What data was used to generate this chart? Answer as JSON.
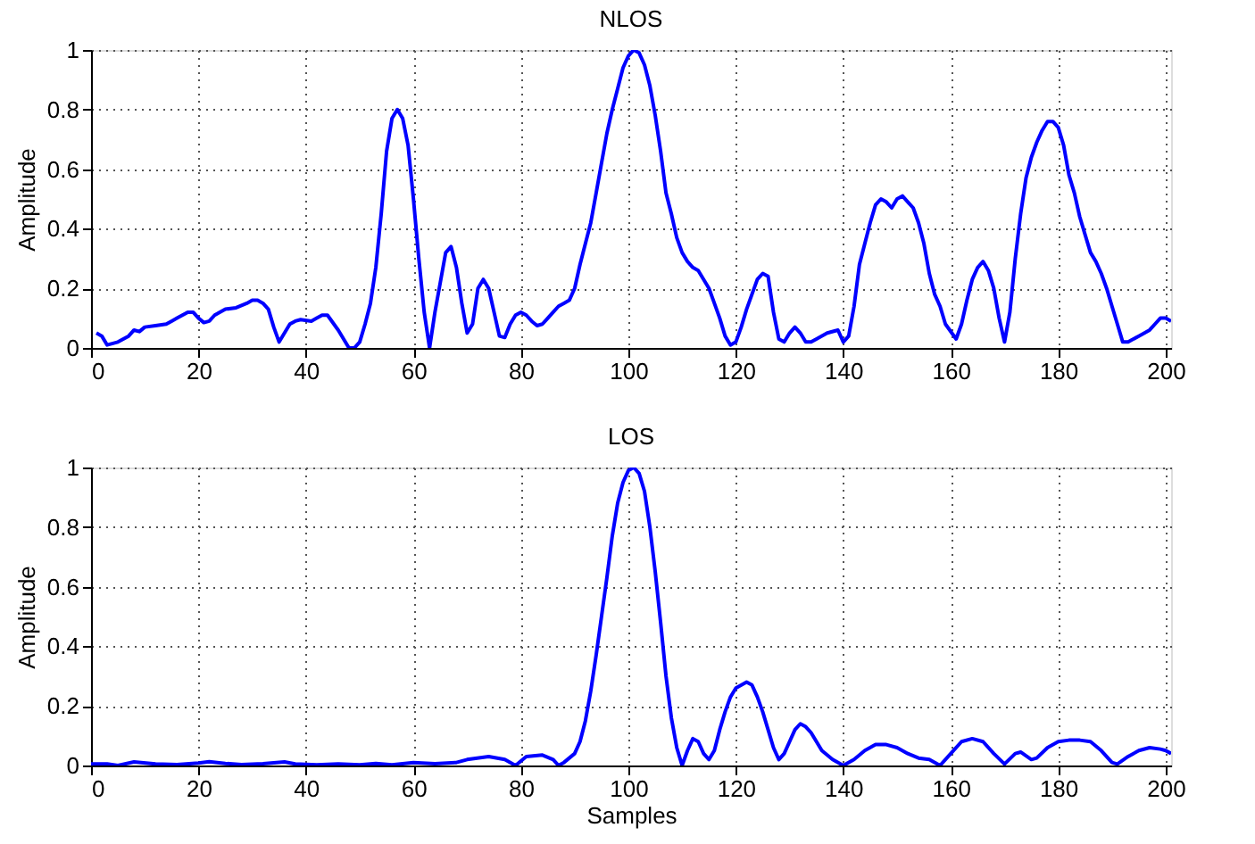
{
  "chart_data": [
    {
      "type": "line",
      "title": "NLOS",
      "ylabel": "Amplitude",
      "xlim": [
        0,
        201
      ],
      "ylim": [
        0,
        1
      ],
      "xticks": [
        0,
        20,
        40,
        60,
        80,
        100,
        120,
        140,
        160,
        180,
        200
      ],
      "yticks": [
        0,
        0.2,
        0.4,
        0.6,
        0.8,
        1
      ],
      "grid": true,
      "line_style": "solid",
      "marker": "none",
      "series": [
        {
          "color": "#0000ff",
          "x": [
            1,
            2,
            3,
            5,
            7,
            8,
            9,
            10,
            12,
            14,
            15,
            16,
            17,
            18,
            19,
            20,
            21,
            22,
            23,
            25,
            27,
            29,
            30,
            31,
            32,
            33,
            34,
            35,
            36,
            37,
            38,
            39,
            41,
            42,
            43,
            44,
            46,
            47,
            48,
            49,
            50,
            51,
            52,
            53,
            54,
            55,
            56,
            57,
            58,
            59,
            60,
            61,
            62,
            63,
            64,
            65,
            66,
            67,
            68,
            69,
            70,
            71,
            72,
            73,
            74,
            75,
            76,
            77,
            78,
            79,
            80,
            81,
            82,
            83,
            84,
            85,
            86,
            87,
            88,
            89,
            90,
            91,
            92,
            93,
            94,
            95,
            96,
            97,
            98,
            99,
            100,
            101,
            102,
            103,
            104,
            105,
            106,
            107,
            108,
            109,
            110,
            111,
            112,
            113,
            114,
            115,
            116,
            117,
            118,
            119,
            120,
            121,
            122,
            123,
            124,
            125,
            126,
            127,
            128,
            129,
            130,
            131,
            132,
            133,
            134,
            135,
            137,
            139,
            140,
            141,
            142,
            143,
            144,
            145,
            146,
            147,
            148,
            149,
            150,
            151,
            152,
            153,
            154,
            155,
            156,
            157,
            158,
            159,
            161,
            162,
            163,
            164,
            165,
            166,
            167,
            168,
            169,
            170,
            171,
            172,
            173,
            174,
            175,
            176,
            177,
            178,
            179,
            180,
            181,
            182,
            183,
            184,
            185,
            186,
            187,
            188,
            189,
            190,
            191,
            192,
            193,
            195,
            197,
            198,
            199,
            200,
            201
          ],
          "values": [
            0.05,
            0.04,
            0.01,
            0.02,
            0.04,
            0.06,
            0.055,
            0.07,
            0.075,
            0.08,
            0.09,
            0.1,
            0.11,
            0.12,
            0.12,
            0.1,
            0.085,
            0.09,
            0.11,
            0.13,
            0.135,
            0.15,
            0.16,
            0.16,
            0.15,
            0.13,
            0.07,
            0.02,
            0.05,
            0.08,
            0.09,
            0.095,
            0.09,
            0.1,
            0.11,
            0.11,
            0.06,
            0.03,
            0.0,
            0.0,
            0.02,
            0.08,
            0.15,
            0.27,
            0.45,
            0.66,
            0.77,
            0.8,
            0.77,
            0.68,
            0.5,
            0.3,
            0.12,
            0.0,
            0.12,
            0.22,
            0.32,
            0.34,
            0.27,
            0.15,
            0.05,
            0.08,
            0.2,
            0.23,
            0.2,
            0.12,
            0.04,
            0.035,
            0.08,
            0.11,
            0.12,
            0.11,
            0.09,
            0.075,
            0.08,
            0.1,
            0.12,
            0.14,
            0.15,
            0.16,
            0.2,
            0.28,
            0.35,
            0.42,
            0.52,
            0.62,
            0.72,
            0.8,
            0.87,
            0.94,
            0.98,
            1.0,
            0.99,
            0.95,
            0.88,
            0.78,
            0.66,
            0.52,
            0.45,
            0.37,
            0.32,
            0.29,
            0.27,
            0.26,
            0.23,
            0.2,
            0.15,
            0.1,
            0.04,
            0.01,
            0.02,
            0.07,
            0.13,
            0.18,
            0.23,
            0.25,
            0.24,
            0.12,
            0.03,
            0.02,
            0.05,
            0.07,
            0.05,
            0.02,
            0.02,
            0.03,
            0.05,
            0.06,
            0.02,
            0.04,
            0.14,
            0.28,
            0.35,
            0.42,
            0.48,
            0.5,
            0.49,
            0.47,
            0.5,
            0.51,
            0.49,
            0.47,
            0.42,
            0.35,
            0.25,
            0.18,
            0.14,
            0.08,
            0.03,
            0.08,
            0.16,
            0.23,
            0.27,
            0.29,
            0.26,
            0.2,
            0.1,
            0.02,
            0.12,
            0.3,
            0.45,
            0.57,
            0.64,
            0.69,
            0.73,
            0.76,
            0.76,
            0.74,
            0.68,
            0.58,
            0.52,
            0.44,
            0.38,
            0.32,
            0.29,
            0.25,
            0.2,
            0.14,
            0.08,
            0.02,
            0.02,
            0.04,
            0.06,
            0.08,
            0.1,
            0.1,
            0.09
          ]
        }
      ]
    },
    {
      "type": "line",
      "title": "LOS",
      "xlabel": "Samples",
      "ylabel": "Amplitude",
      "xlim": [
        0,
        201
      ],
      "ylim": [
        0,
        1
      ],
      "xticks": [
        0,
        20,
        40,
        60,
        80,
        100,
        120,
        140,
        160,
        180,
        200
      ],
      "yticks": [
        0,
        0.2,
        0.4,
        0.6,
        0.8,
        1
      ],
      "grid": true,
      "line_style": "solid",
      "marker": "none",
      "series": [
        {
          "color": "#0000ff",
          "x": [
            0,
            3,
            5,
            8,
            12,
            16,
            20,
            22,
            25,
            28,
            32,
            36,
            38,
            42,
            46,
            50,
            53,
            56,
            60,
            64,
            68,
            70,
            74,
            77,
            79,
            81,
            84,
            86,
            87,
            88,
            90,
            91,
            92,
            93,
            94,
            95,
            96,
            97,
            98,
            99,
            100,
            101,
            102,
            103,
            104,
            105,
            106,
            107,
            108,
            109,
            110,
            111,
            112,
            113,
            114,
            115,
            116,
            117,
            118,
            119,
            120,
            122,
            123,
            124,
            125,
            126,
            127,
            128,
            129,
            130,
            131,
            132,
            133,
            134,
            135,
            136,
            138,
            140,
            142,
            144,
            146,
            148,
            150,
            152,
            154,
            156,
            158,
            160,
            162,
            164,
            166,
            168,
            170,
            172,
            173,
            175,
            176,
            178,
            180,
            182,
            184,
            186,
            188,
            190,
            191,
            193,
            195,
            197,
            199,
            200,
            201
          ],
          "values": [
            0.005,
            0.005,
            0.0,
            0.012,
            0.005,
            0.003,
            0.008,
            0.013,
            0.007,
            0.003,
            0.006,
            0.012,
            0.005,
            0.002,
            0.005,
            0.002,
            0.007,
            0.002,
            0.01,
            0.006,
            0.01,
            0.02,
            0.03,
            0.02,
            0.0,
            0.03,
            0.035,
            0.02,
            0.0,
            0.01,
            0.04,
            0.08,
            0.15,
            0.25,
            0.37,
            0.5,
            0.63,
            0.77,
            0.88,
            0.95,
            0.99,
            1.0,
            0.98,
            0.92,
            0.8,
            0.65,
            0.48,
            0.3,
            0.16,
            0.06,
            0.0,
            0.05,
            0.09,
            0.08,
            0.04,
            0.02,
            0.05,
            0.12,
            0.18,
            0.23,
            0.26,
            0.28,
            0.27,
            0.23,
            0.18,
            0.12,
            0.06,
            0.02,
            0.04,
            0.08,
            0.12,
            0.14,
            0.13,
            0.11,
            0.08,
            0.05,
            0.02,
            0.0,
            0.02,
            0.05,
            0.07,
            0.07,
            0.06,
            0.04,
            0.025,
            0.02,
            0.0,
            0.04,
            0.08,
            0.09,
            0.08,
            0.04,
            0.005,
            0.04,
            0.045,
            0.02,
            0.025,
            0.06,
            0.08,
            0.085,
            0.085,
            0.08,
            0.05,
            0.01,
            0.005,
            0.03,
            0.05,
            0.06,
            0.055,
            0.05,
            0.04
          ]
        }
      ]
    }
  ]
}
